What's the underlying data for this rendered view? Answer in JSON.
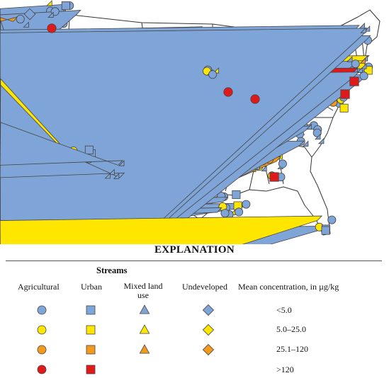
{
  "explanation": {
    "title": "EXPLANATION",
    "streams_header": "Streams",
    "columns": {
      "agricultural": "Agricultural",
      "urban": "Urban",
      "mixed": "Mixed land use",
      "undeveloped": "Undeveloped"
    },
    "concentration_header": "Mean concentration, in µg/kg",
    "classes": [
      "<5.0",
      "5.0–25.0",
      "25.1–120",
      ">120"
    ]
  },
  "colors": {
    "low": "#7fa5d8",
    "mid": "#ffe600",
    "high": "#f39a1e",
    "very_high": "#e01a1a",
    "outline": "#444444",
    "state_lines": "#333333"
  },
  "symbol_shapes": {
    "agricultural": "circle",
    "urban": "square",
    "mixed": "triangle",
    "undeveloped": "diamond"
  }
}
